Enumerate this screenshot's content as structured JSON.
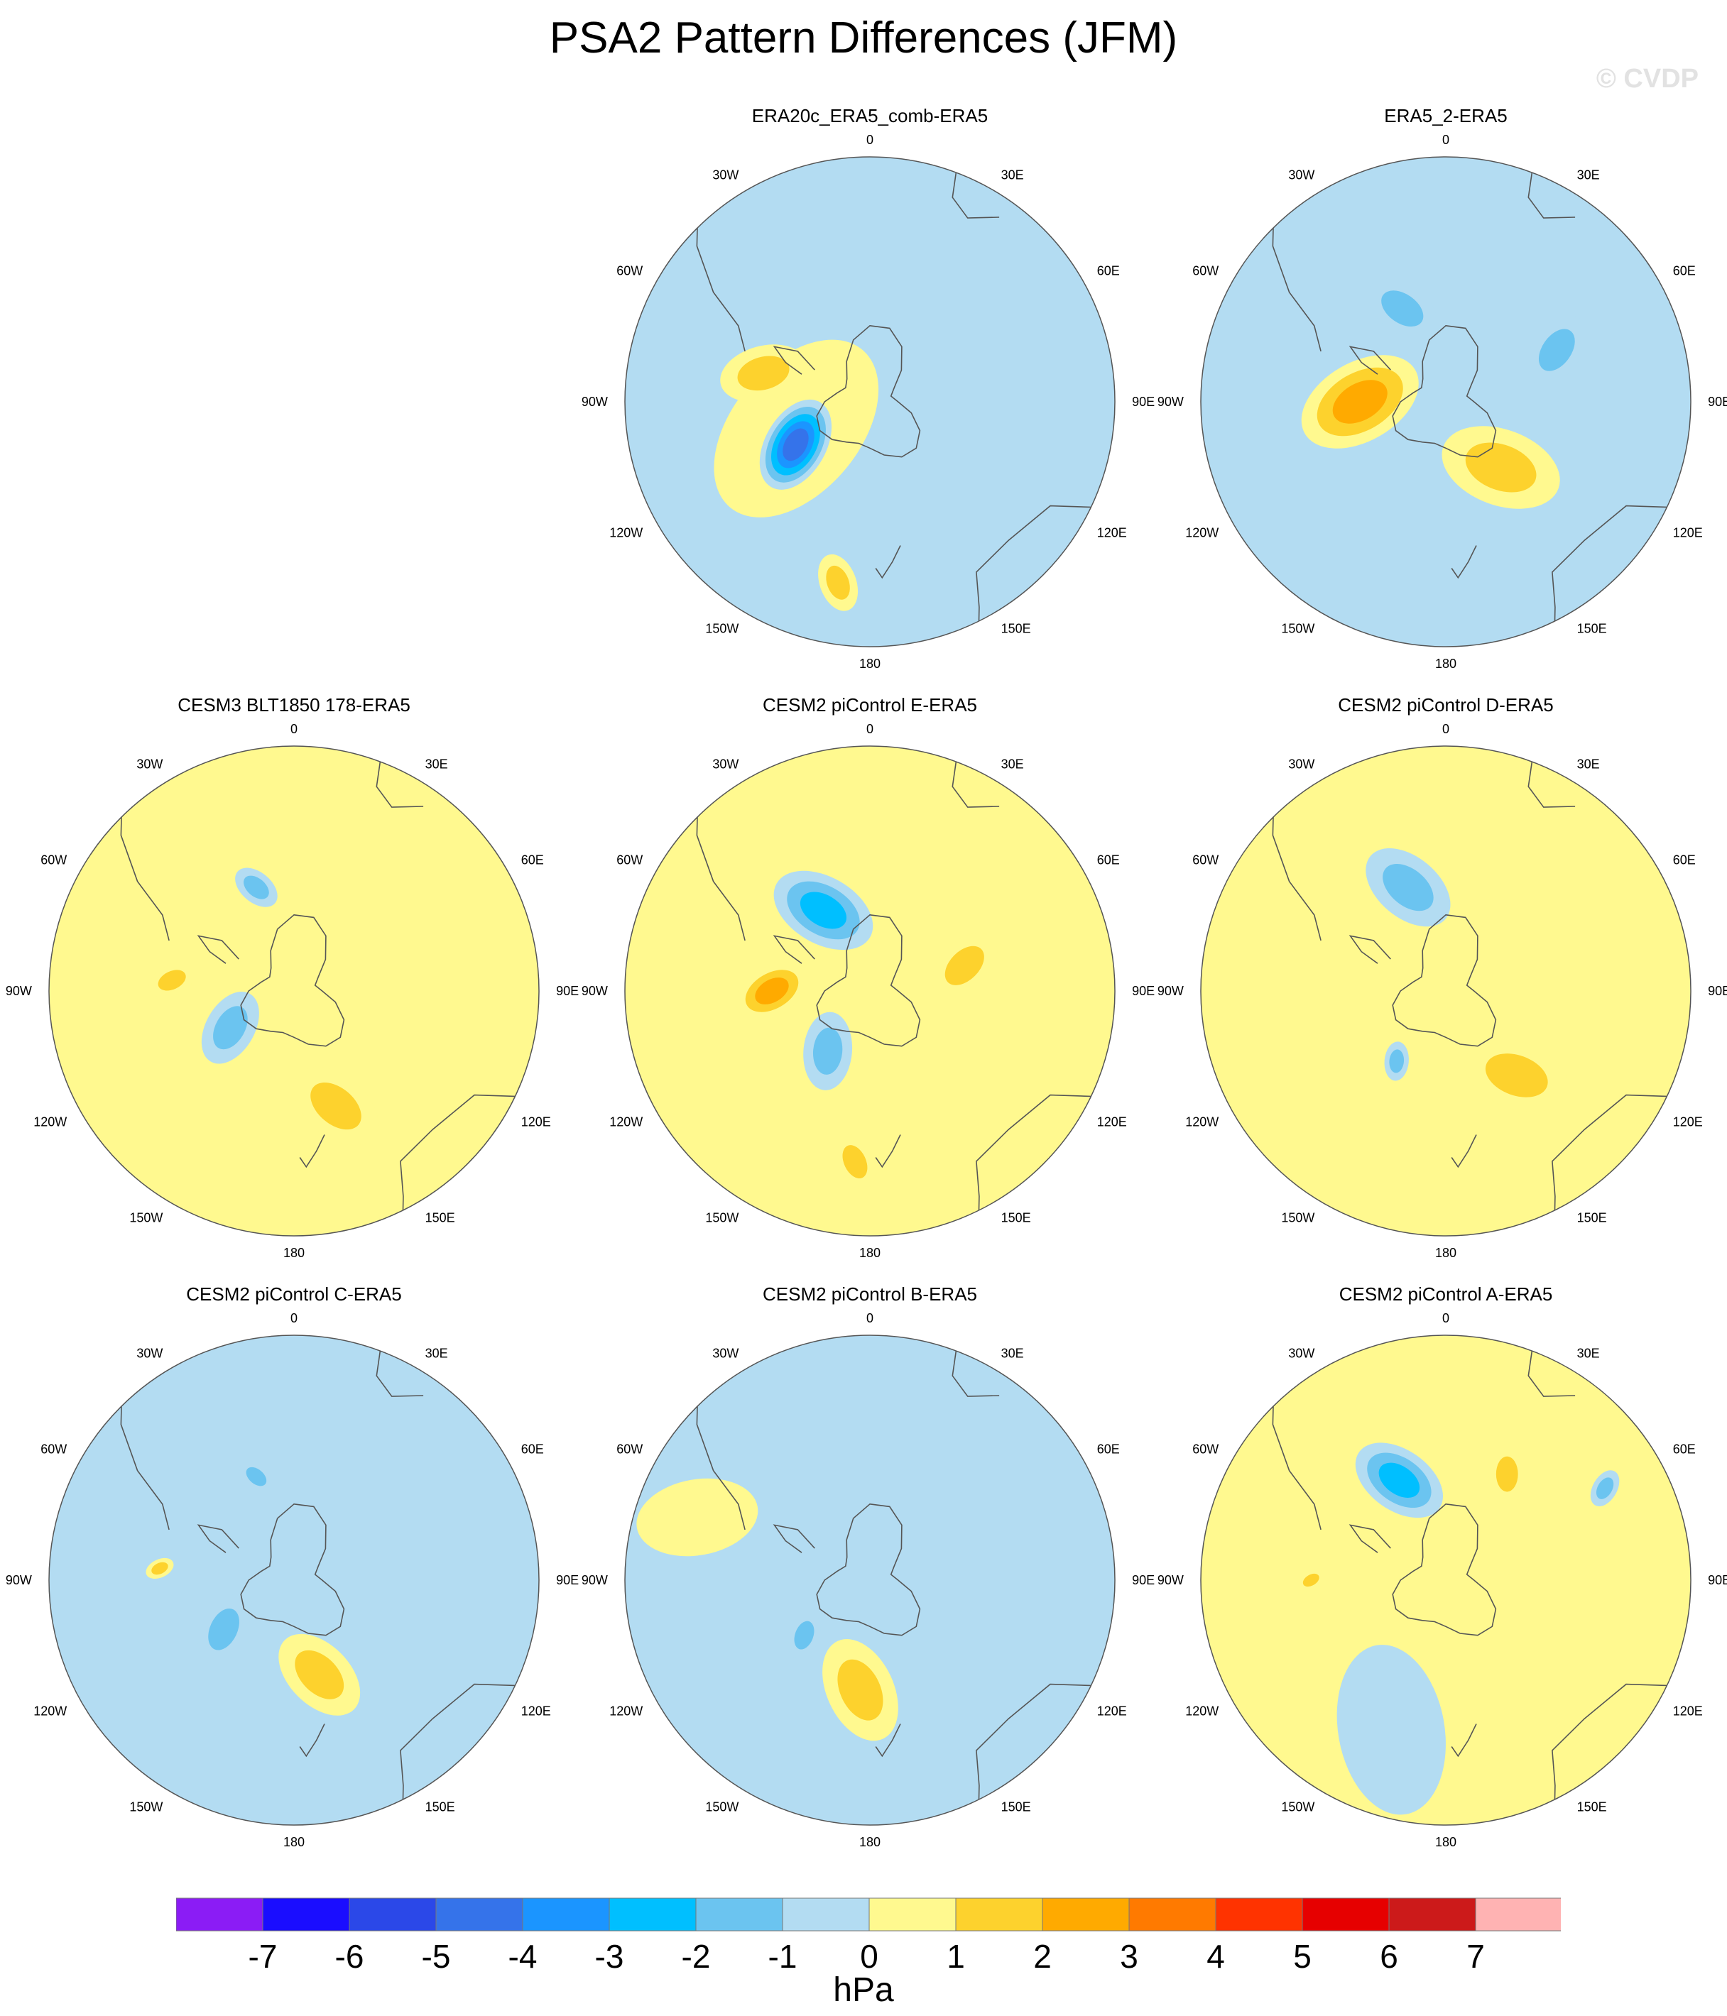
{
  "title": "PSA2 Pattern Differences (JFM)",
  "watermark": "© CVDP",
  "lon_labels": {
    "top": "0",
    "bottom": "180",
    "left": [
      "30W",
      "60W",
      "90W",
      "120W",
      "150W"
    ],
    "right": [
      "30E",
      "60E",
      "90E",
      "120E",
      "150E"
    ]
  },
  "colors": {
    "neg": [
      "#8b1cf5",
      "#1a0dff",
      "#2b48e8",
      "#3573ea",
      "#1b95ff",
      "#00bfff",
      "#6bc4f0",
      "#b3dcf2"
    ],
    "pos": [
      "#fff98f",
      "#fdd22d",
      "#ffaa00",
      "#ff7a00",
      "#ff3300",
      "#e60000",
      "#cc1a1a",
      "#ffb3b3"
    ],
    "ocean_neg": "#b3dcf2",
    "ocean_pos": "#fff98f",
    "coast": "#555555"
  },
  "panels": [
    {
      "title": "ERA20c_ERA5_comb-ERA5",
      "base": "neg",
      "blobs": [
        {
          "lon": 250,
          "r": 0.32,
          "w": 0.42,
          "level": "pos",
          "min": 0
        },
        {
          "lon": 240,
          "r": 0.35,
          "w": 0.2,
          "level": "neg",
          "min": -5
        },
        {
          "lon": 285,
          "r": 0.45,
          "w": 0.18,
          "level": "pos",
          "min": 1
        },
        {
          "lon": 190,
          "r": 0.75,
          "w": 0.12,
          "level": "pos",
          "min": 1
        }
      ]
    },
    {
      "title": "ERA5_2-ERA5",
      "base": "neg",
      "blobs": [
        {
          "lon": 270,
          "r": 0.35,
          "w": 0.26,
          "level": "pos",
          "min": 2
        },
        {
          "lon": 140,
          "r": 0.35,
          "w": 0.25,
          "level": "pos",
          "min": 1
        },
        {
          "lon": 335,
          "r": 0.42,
          "w": 0.16,
          "level": "neg",
          "min": -2
        },
        {
          "lon": 65,
          "r": 0.5,
          "w": 0.16,
          "level": "neg",
          "min": -2
        }
      ]
    },
    {
      "title": "CESM3 BLT1850 178-ERA5",
      "base": "pos",
      "blobs": [
        {
          "lon": 240,
          "r": 0.3,
          "w": 0.16,
          "level": "neg",
          "min": -2
        },
        {
          "lon": 340,
          "r": 0.45,
          "w": 0.1,
          "level": "neg",
          "min": -2
        },
        {
          "lon": 160,
          "r": 0.5,
          "w": 0.2,
          "level": "pos",
          "min": 1
        },
        {
          "lon": 275,
          "r": 0.5,
          "w": 0.1,
          "level": "pos",
          "min": 1
        }
      ]
    },
    {
      "title": "CESM2 piControl E-ERA5",
      "base": "pos",
      "blobs": [
        {
          "lon": 330,
          "r": 0.38,
          "w": 0.22,
          "level": "neg",
          "min": -3
        },
        {
          "lon": 215,
          "r": 0.3,
          "w": 0.16,
          "level": "neg",
          "min": -2
        },
        {
          "lon": 270,
          "r": 0.4,
          "w": 0.16,
          "level": "pos",
          "min": 2
        },
        {
          "lon": 75,
          "r": 0.4,
          "w": 0.16,
          "level": "pos",
          "min": 1
        },
        {
          "lon": 185,
          "r": 0.7,
          "w": 0.12,
          "level": "pos",
          "min": 1
        }
      ]
    },
    {
      "title": "CESM2 piControl D-ERA5",
      "base": "pos",
      "blobs": [
        {
          "lon": 340,
          "r": 0.45,
          "w": 0.2,
          "level": "neg",
          "min": -2
        },
        {
          "lon": 140,
          "r": 0.45,
          "w": 0.22,
          "level": "pos",
          "min": 1
        },
        {
          "lon": 215,
          "r": 0.35,
          "w": 0.08,
          "level": "neg",
          "min": -2
        }
      ]
    },
    {
      "title": "CESM2 piControl C-ERA5",
      "base": "neg",
      "blobs": [
        {
          "lon": 235,
          "r": 0.35,
          "w": 0.15,
          "level": "neg",
          "min": -2
        },
        {
          "lon": 165,
          "r": 0.4,
          "w": 0.2,
          "level": "pos",
          "min": 1
        },
        {
          "lon": 340,
          "r": 0.45,
          "w": 0.08,
          "level": "neg",
          "min": -2
        },
        {
          "lon": 275,
          "r": 0.55,
          "w": 0.06,
          "level": "pos",
          "min": 1
        }
      ]
    },
    {
      "title": "CESM2 piControl B-ERA5",
      "base": "neg",
      "blobs": [
        {
          "lon": 185,
          "r": 0.45,
          "w": 0.22,
          "level": "pos",
          "min": 1
        },
        {
          "lon": 230,
          "r": 0.35,
          "w": 0.1,
          "level": "neg",
          "min": -2
        },
        {
          "lon": 290,
          "r": 0.75,
          "w": 0.25,
          "level": "pos",
          "min": 0
        }
      ]
    },
    {
      "title": "CESM2 piControl A-ERA5",
      "base": "pos",
      "blobs": [
        {
          "lon": 335,
          "r": 0.45,
          "w": 0.2,
          "level": "neg",
          "min": -3
        },
        {
          "lon": 30,
          "r": 0.5,
          "w": 0.12,
          "level": "pos",
          "min": 1
        },
        {
          "lon": 60,
          "r": 0.75,
          "w": 0.08,
          "level": "neg",
          "min": -2
        },
        {
          "lon": 200,
          "r": 0.65,
          "w": 0.35,
          "level": "neg",
          "min": 0
        },
        {
          "lon": 270,
          "r": 0.55,
          "w": 0.06,
          "level": "pos",
          "min": 1
        }
      ]
    }
  ],
  "colorbar": {
    "ticks": [
      "-7",
      "-6",
      "-5",
      "-4",
      "-3",
      "-2",
      "-1",
      "0",
      "1",
      "2",
      "3",
      "4",
      "5",
      "6",
      "7"
    ],
    "unit": "hPa"
  }
}
